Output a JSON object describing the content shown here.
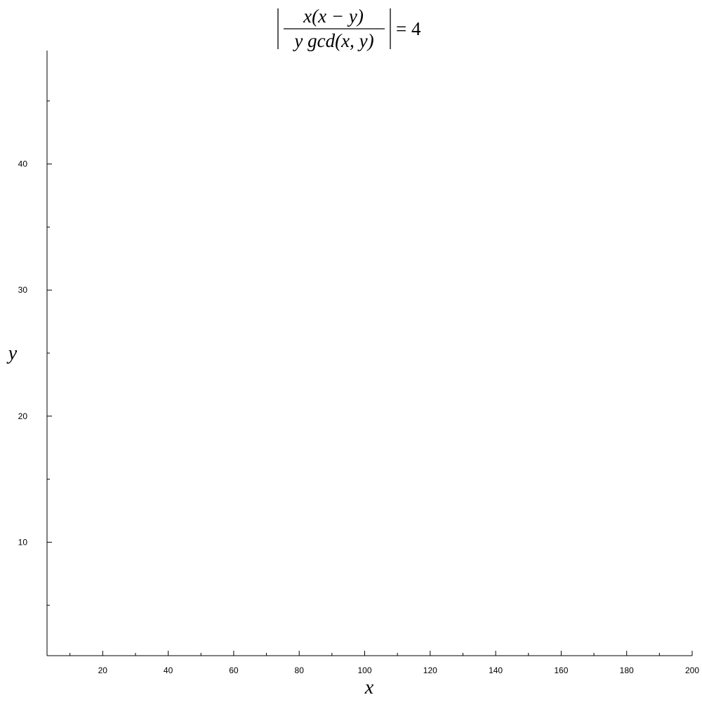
{
  "chart_data": {
    "type": "scatter",
    "title": "|x(x − y) / (y gcd(x, y))| = 4",
    "title_parts": {
      "numerator": "x(x − y)",
      "denominator": "y gcd(x, y)",
      "rhs": "= 4"
    },
    "xlabel": "x",
    "ylabel": "y",
    "xlim": [
      3,
      200
    ],
    "ylim": [
      1,
      49
    ],
    "xticks": [
      "20",
      "40",
      "60",
      "80",
      "100",
      "120",
      "140",
      "160",
      "180",
      "200"
    ],
    "yticks": [
      "10",
      "20",
      "30",
      "40"
    ],
    "grid": false,
    "legend": "none",
    "marker_color": "#0000ff",
    "equation_k": 4
  }
}
